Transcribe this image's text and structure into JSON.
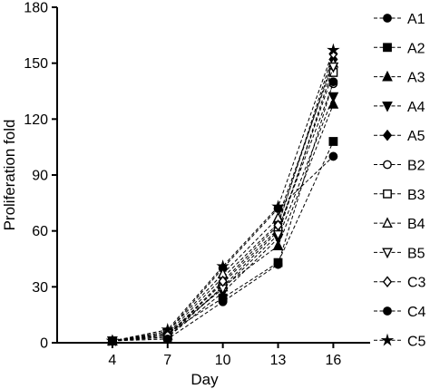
{
  "chart_data": {
    "type": "line",
    "title": "",
    "xlabel": "Day",
    "ylabel": "Proliferation fold",
    "x": [
      4,
      7,
      10,
      13,
      16
    ],
    "xlim": [
      1,
      18
    ],
    "ylim": [
      0,
      180
    ],
    "yticks": [
      0,
      30,
      60,
      90,
      120,
      150,
      180
    ],
    "xticks": [
      4,
      7,
      10,
      13,
      16
    ],
    "grid": false,
    "legend_position": "right",
    "line_style": "dashed",
    "series": [
      {
        "name": "A1",
        "marker": "circle-filled",
        "values": [
          1,
          6,
          40,
          72,
          100
        ]
      },
      {
        "name": "A2",
        "marker": "square-filled",
        "values": [
          1,
          5,
          24,
          43,
          108
        ]
      },
      {
        "name": "A3",
        "marker": "triangle-filled",
        "values": [
          1,
          4,
          30,
          52,
          128
        ]
      },
      {
        "name": "A4",
        "marker": "triangle-down-filled",
        "values": [
          1,
          3,
          27,
          56,
          132
        ]
      },
      {
        "name": "A5",
        "marker": "diamond-filled",
        "values": [
          1,
          5,
          35,
          64,
          152
        ]
      },
      {
        "name": "B2",
        "marker": "circle-open",
        "values": [
          1,
          4,
          32,
          61,
          139
        ]
      },
      {
        "name": "B3",
        "marker": "square-open",
        "values": [
          1,
          3,
          30,
          60,
          145
        ]
      },
      {
        "name": "B4",
        "marker": "triangle-open",
        "values": [
          1,
          6,
          37,
          67,
          150
        ]
      },
      {
        "name": "B5",
        "marker": "triangle-down-open",
        "values": [
          1,
          5,
          29,
          58,
          148
        ]
      },
      {
        "name": "C3",
        "marker": "diamond-open",
        "values": [
          1,
          4,
          33,
          63,
          155
        ]
      },
      {
        "name": "C4",
        "marker": "circle-filled",
        "values": [
          1,
          2,
          22,
          42,
          140
        ]
      },
      {
        "name": "C5",
        "marker": "star",
        "values": [
          1,
          7,
          41,
          73,
          157
        ]
      }
    ]
  }
}
